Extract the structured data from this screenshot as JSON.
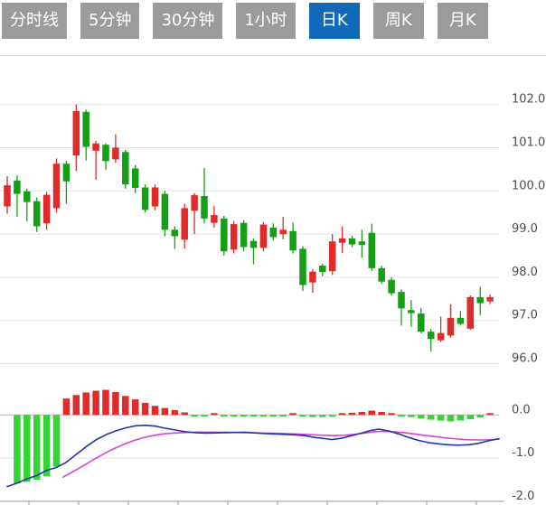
{
  "tab_bar": {
    "tabs": [
      {
        "label": "分时线",
        "active": false
      },
      {
        "label": "5分钟",
        "active": false
      },
      {
        "label": "30分钟",
        "active": false
      },
      {
        "label": "1小时",
        "active": false
      },
      {
        "label": "日K",
        "active": true
      },
      {
        "label": "周K",
        "active": false
      },
      {
        "label": "月K",
        "active": false
      }
    ]
  },
  "colors": {
    "tab_bg": "#9b9b9b",
    "tab_active_bg": "#1269b7",
    "tab_text": "#ffffff",
    "candle_up": "#e12b2b",
    "candle_down": "#169e16",
    "hist_up": "#e12b2b",
    "hist_down": "#35d435",
    "dif_line": "#2533ad",
    "dea_line": "#d944ce",
    "grid": "#e2e2e2",
    "zero_line": "#ef9a9a",
    "bottom_axis": "#ababab",
    "axis_text": "#4d4d4d"
  },
  "chart_data": {
    "type": "candlestick_with_macd",
    "title": "",
    "legend_position": "none",
    "grid": "horizontal-only",
    "price_axis": {
      "side": "right",
      "labels": [
        "102.0",
        "101.0",
        "100.0",
        "99.0",
        "98.0",
        "97.0",
        "96.0"
      ],
      "values": [
        102,
        101,
        100,
        99,
        98,
        97,
        96
      ],
      "ylim": [
        95.8,
        102.4
      ]
    },
    "macd_axis": {
      "side": "right",
      "labels": [
        "0.0",
        "-1.0",
        "-2.0"
      ],
      "values": [
        0,
        -1,
        -2
      ],
      "ylim": [
        -2.1,
        0.6
      ]
    },
    "candles": [
      {
        "o": 99.64,
        "h": 100.34,
        "l": 99.47,
        "c": 100.13
      },
      {
        "o": 100.24,
        "h": 100.36,
        "l": 99.4,
        "c": 99.93
      },
      {
        "o": 99.99,
        "h": 100.05,
        "l": 99.3,
        "c": 99.74
      },
      {
        "o": 99.76,
        "h": 99.85,
        "l": 99.05,
        "c": 99.18
      },
      {
        "o": 99.25,
        "h": 99.98,
        "l": 99.1,
        "c": 99.91
      },
      {
        "o": 99.6,
        "h": 100.75,
        "l": 99.5,
        "c": 100.63
      },
      {
        "o": 100.63,
        "h": 100.7,
        "l": 99.7,
        "c": 100.22
      },
      {
        "o": 100.82,
        "h": 102.0,
        "l": 100.46,
        "c": 101.85
      },
      {
        "o": 101.83,
        "h": 101.88,
        "l": 100.7,
        "c": 101.02
      },
      {
        "o": 100.93,
        "h": 101.16,
        "l": 100.26,
        "c": 101.1
      },
      {
        "o": 101.07,
        "h": 101.1,
        "l": 100.49,
        "c": 100.69
      },
      {
        "o": 100.73,
        "h": 101.31,
        "l": 100.65,
        "c": 101.0
      },
      {
        "o": 100.9,
        "h": 100.95,
        "l": 100.05,
        "c": 100.15
      },
      {
        "o": 100.52,
        "h": 100.6,
        "l": 99.95,
        "c": 100.07
      },
      {
        "o": 100.08,
        "h": 100.15,
        "l": 99.5,
        "c": 99.56
      },
      {
        "o": 99.64,
        "h": 100.15,
        "l": 99.55,
        "c": 100.08
      },
      {
        "o": 99.93,
        "h": 100.0,
        "l": 98.95,
        "c": 99.1
      },
      {
        "o": 99.1,
        "h": 99.18,
        "l": 98.66,
        "c": 98.95
      },
      {
        "o": 98.87,
        "h": 99.7,
        "l": 98.66,
        "c": 99.6
      },
      {
        "o": 99.54,
        "h": 99.95,
        "l": 99.0,
        "c": 99.9
      },
      {
        "o": 99.88,
        "h": 100.53,
        "l": 99.25,
        "c": 99.36
      },
      {
        "o": 99.26,
        "h": 99.65,
        "l": 99.15,
        "c": 99.44
      },
      {
        "o": 99.36,
        "h": 99.42,
        "l": 98.5,
        "c": 98.6
      },
      {
        "o": 98.64,
        "h": 99.3,
        "l": 98.55,
        "c": 99.23
      },
      {
        "o": 99.26,
        "h": 99.32,
        "l": 98.6,
        "c": 98.7
      },
      {
        "o": 98.84,
        "h": 98.9,
        "l": 98.3,
        "c": 98.68
      },
      {
        "o": 98.68,
        "h": 99.28,
        "l": 98.6,
        "c": 99.22
      },
      {
        "o": 99.15,
        "h": 99.25,
        "l": 98.85,
        "c": 98.93
      },
      {
        "o": 99.0,
        "h": 99.4,
        "l": 98.88,
        "c": 99.1
      },
      {
        "o": 99.07,
        "h": 99.27,
        "l": 98.55,
        "c": 98.62
      },
      {
        "o": 98.66,
        "h": 98.72,
        "l": 97.68,
        "c": 97.82
      },
      {
        "o": 97.88,
        "h": 98.18,
        "l": 97.64,
        "c": 98.13
      },
      {
        "o": 98.27,
        "h": 98.32,
        "l": 98.02,
        "c": 98.12
      },
      {
        "o": 98.14,
        "h": 99.0,
        "l": 98.05,
        "c": 98.83
      },
      {
        "o": 98.8,
        "h": 99.18,
        "l": 98.56,
        "c": 98.9
      },
      {
        "o": 98.9,
        "h": 98.96,
        "l": 98.7,
        "c": 98.76
      },
      {
        "o": 98.83,
        "h": 99.1,
        "l": 98.45,
        "c": 98.75
      },
      {
        "o": 99.03,
        "h": 99.24,
        "l": 98.15,
        "c": 98.21
      },
      {
        "o": 98.21,
        "h": 98.26,
        "l": 97.85,
        "c": 97.9
      },
      {
        "o": 97.94,
        "h": 98.0,
        "l": 97.58,
        "c": 97.63
      },
      {
        "o": 97.66,
        "h": 97.72,
        "l": 96.88,
        "c": 97.28
      },
      {
        "o": 97.24,
        "h": 97.47,
        "l": 96.85,
        "c": 97.17
      },
      {
        "o": 97.16,
        "h": 97.29,
        "l": 96.7,
        "c": 96.74
      },
      {
        "o": 96.74,
        "h": 96.8,
        "l": 96.28,
        "c": 96.57
      },
      {
        "o": 96.54,
        "h": 97.09,
        "l": 96.5,
        "c": 96.71
      },
      {
        "o": 96.65,
        "h": 97.37,
        "l": 96.6,
        "c": 97.06
      },
      {
        "o": 97.06,
        "h": 97.22,
        "l": 96.88,
        "c": 96.92
      },
      {
        "o": 96.81,
        "h": 97.58,
        "l": 96.78,
        "c": 97.54
      },
      {
        "o": 97.54,
        "h": 97.78,
        "l": 97.12,
        "c": 97.4
      },
      {
        "o": 97.44,
        "h": 97.6,
        "l": 97.38,
        "c": 97.54
      }
    ],
    "macd": {
      "histogram": [
        null,
        -1.58,
        -1.55,
        -1.5,
        -1.42,
        -1.2,
        0.38,
        0.46,
        0.52,
        0.56,
        0.58,
        0.53,
        0.44,
        0.36,
        0.28,
        0.21,
        0.16,
        0.11,
        0.06,
        -0.03,
        -0.03,
        0.03,
        -0.02,
        -0.02,
        -0.03,
        -0.03,
        -0.03,
        -0.03,
        -0.03,
        0.02,
        -0.04,
        -0.05,
        -0.05,
        -0.04,
        0.04,
        0.05,
        0.07,
        0.1,
        0.07,
        0.03,
        -0.03,
        -0.05,
        -0.08,
        -0.11,
        -0.13,
        -0.15,
        -0.13,
        -0.1,
        -0.06,
        0.04
      ],
      "dif": [
        [
          8,
          -1.66
        ],
        [
          19,
          -1.58
        ],
        [
          30,
          -1.48
        ],
        [
          41,
          -1.4
        ],
        [
          52,
          -1.28
        ],
        [
          62,
          -1.22
        ],
        [
          73,
          -1.1
        ],
        [
          84,
          -0.92
        ],
        [
          95,
          -0.74
        ],
        [
          106,
          -0.58
        ],
        [
          117,
          -0.46
        ],
        [
          128,
          -0.37
        ],
        [
          139,
          -0.3
        ],
        [
          150,
          -0.25
        ],
        [
          161,
          -0.24
        ],
        [
          172,
          -0.26
        ],
        [
          183,
          -0.31
        ],
        [
          194,
          -0.35
        ],
        [
          205,
          -0.39
        ],
        [
          216,
          -0.41
        ],
        [
          227,
          -0.42
        ],
        [
          249,
          -0.41
        ],
        [
          271,
          -0.4
        ],
        [
          293,
          -0.43
        ],
        [
          315,
          -0.45
        ],
        [
          326,
          -0.46
        ],
        [
          337,
          -0.48
        ],
        [
          348,
          -0.52
        ],
        [
          367,
          -0.57
        ],
        [
          378,
          -0.54
        ],
        [
          389,
          -0.48
        ],
        [
          400,
          -0.42
        ],
        [
          410,
          -0.36
        ],
        [
          419,
          -0.33
        ],
        [
          430,
          -0.37
        ],
        [
          441,
          -0.44
        ],
        [
          452,
          -0.52
        ],
        [
          463,
          -0.59
        ],
        [
          474,
          -0.64
        ],
        [
          485,
          -0.67
        ],
        [
          496,
          -0.69
        ],
        [
          507,
          -0.7
        ],
        [
          518,
          -0.69
        ],
        [
          529,
          -0.66
        ],
        [
          540,
          -0.6
        ],
        [
          552,
          -0.55
        ]
      ],
      "dea": [
        [
          70,
          -1.44
        ],
        [
          81,
          -1.31
        ],
        [
          92,
          -1.18
        ],
        [
          103,
          -1.04
        ],
        [
          114,
          -0.91
        ],
        [
          125,
          -0.79
        ],
        [
          136,
          -0.69
        ],
        [
          147,
          -0.6
        ],
        [
          158,
          -0.53
        ],
        [
          169,
          -0.48
        ],
        [
          180,
          -0.44
        ],
        [
          191,
          -0.42
        ],
        [
          202,
          -0.41
        ],
        [
          213,
          -0.4
        ],
        [
          227,
          -0.4
        ],
        [
          249,
          -0.4
        ],
        [
          271,
          -0.41
        ],
        [
          293,
          -0.42
        ],
        [
          315,
          -0.43
        ],
        [
          337,
          -0.45
        ],
        [
          348,
          -0.46
        ],
        [
          359,
          -0.47
        ],
        [
          370,
          -0.48
        ],
        [
          381,
          -0.47
        ],
        [
          392,
          -0.45
        ],
        [
          403,
          -0.42
        ],
        [
          414,
          -0.39
        ],
        [
          425,
          -0.38
        ],
        [
          436,
          -0.39
        ],
        [
          447,
          -0.41
        ],
        [
          458,
          -0.44
        ],
        [
          469,
          -0.47
        ],
        [
          480,
          -0.5
        ],
        [
          491,
          -0.53
        ],
        [
          502,
          -0.55
        ],
        [
          513,
          -0.57
        ],
        [
          524,
          -0.58
        ],
        [
          535,
          -0.58
        ],
        [
          546,
          -0.57
        ],
        [
          552,
          -0.56
        ]
      ]
    }
  }
}
